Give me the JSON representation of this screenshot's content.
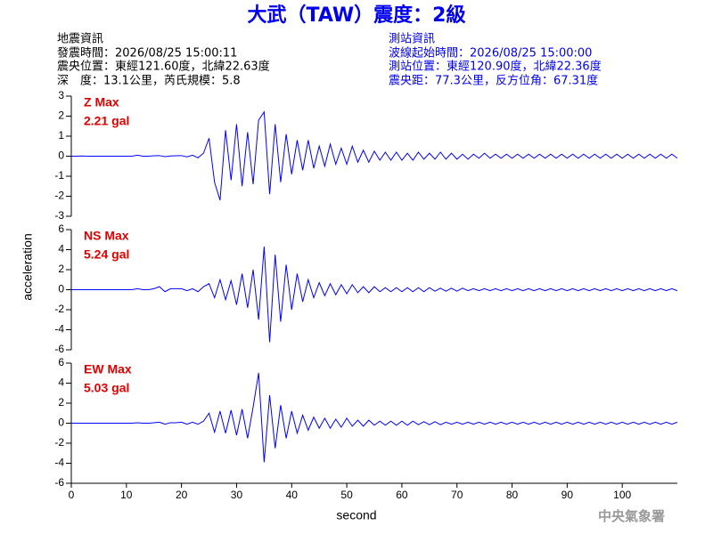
{
  "header": {
    "title": "大武（TAW）震度：2級",
    "left": [
      "地震資訊",
      "發震時間：2026/08/25 15:00:11",
      "震央位置：東經121.60度，北緯22.63度",
      "深　度：13.1公里，芮氏規模：5.8"
    ],
    "right": [
      "測站資訊",
      "波線起始時間：2026/08/25 15:00:00",
      "測站位置：東經120.90度，北緯22.36度",
      "震央距：77.3公里，反方位角：67.31度"
    ]
  },
  "footer": "中央氣象署",
  "chart_data": [
    {
      "type": "line",
      "max_name": "Z Max",
      "max_label": "2.21 gal",
      "color": "#0000ff",
      "annotation_color": "#e00000",
      "xlim": [
        0,
        110
      ],
      "ylim": [
        -3,
        3
      ],
      "yticks": [
        3,
        2,
        1,
        0,
        -1,
        -2,
        -3
      ],
      "x": [
        0,
        1,
        2,
        3,
        4,
        5,
        6,
        7,
        8,
        9,
        10,
        11,
        12,
        13,
        14,
        15,
        16,
        17,
        18,
        19,
        20,
        21,
        22,
        23,
        24,
        25,
        26,
        27,
        28,
        29,
        30,
        31,
        32,
        33,
        34,
        35,
        36,
        37,
        38,
        39,
        40,
        41,
        42,
        43,
        44,
        45,
        46,
        47,
        48,
        49,
        50,
        51,
        52,
        53,
        54,
        55,
        56,
        57,
        58,
        59,
        60,
        61,
        62,
        63,
        64,
        65,
        66,
        67,
        68,
        69,
        70,
        71,
        72,
        73,
        74,
        75,
        76,
        77,
        78,
        79,
        80,
        81,
        82,
        83,
        84,
        85,
        86,
        87,
        88,
        89,
        90,
        91,
        92,
        93,
        94,
        95,
        96,
        97,
        98,
        99,
        100,
        101,
        102,
        103,
        104,
        105,
        106,
        107,
        108,
        109,
        110
      ],
      "values": [
        0,
        0,
        0.01,
        0,
        0,
        0,
        0,
        0,
        0,
        0,
        0,
        0,
        0.05,
        0,
        0,
        0.02,
        0.03,
        -0.02,
        0.01,
        0.02,
        0.03,
        -0.03,
        0.05,
        -0.08,
        0.15,
        0.9,
        -1.3,
        -2.2,
        1.3,
        -1.2,
        1.6,
        -1.5,
        1.2,
        -1.4,
        1.8,
        2.21,
        -1.9,
        1.6,
        -1.3,
        1.1,
        -0.9,
        0.8,
        -0.7,
        0.8,
        -0.6,
        0.5,
        -0.5,
        0.6,
        -0.4,
        0.4,
        -0.4,
        0.5,
        -0.3,
        0.3,
        -0.3,
        0.25,
        -0.2,
        0.2,
        -0.2,
        0.2,
        -0.2,
        0.15,
        -0.2,
        0.2,
        -0.15,
        0.15,
        -0.15,
        0.2,
        -0.15,
        0.15,
        -0.15,
        0.1,
        -0.15,
        0.1,
        -0.1,
        0.15,
        -0.1,
        0.1,
        -0.1,
        0.1,
        -0.1,
        0.1,
        -0.1,
        0.1,
        -0.1,
        0.1,
        -0.1,
        0.1,
        -0.1,
        0.1,
        -0.1,
        0.1,
        -0.1,
        0.1,
        -0.1,
        0.1,
        -0.1,
        0.1,
        -0.1,
        0.1,
        -0.1,
        0.1,
        -0.1,
        0.1,
        -0.1,
        0.1,
        -0.1,
        0.1,
        -0.1,
        0.1,
        -0.1
      ]
    },
    {
      "type": "line",
      "max_name": "NS Max",
      "max_label": "5.24 gal",
      "color": "#0000ff",
      "annotation_color": "#e00000",
      "ylabel": "acceleration",
      "xlim": [
        0,
        110
      ],
      "ylim": [
        -6,
        6
      ],
      "yticks": [
        6,
        4,
        2,
        0,
        -2,
        -4,
        -6
      ],
      "x": [
        0,
        1,
        2,
        3,
        4,
        5,
        6,
        7,
        8,
        9,
        10,
        11,
        12,
        13,
        14,
        15,
        16,
        17,
        18,
        19,
        20,
        21,
        22,
        23,
        24,
        25,
        26,
        27,
        28,
        29,
        30,
        31,
        32,
        33,
        34,
        35,
        36,
        37,
        38,
        39,
        40,
        41,
        42,
        43,
        44,
        45,
        46,
        47,
        48,
        49,
        50,
        51,
        52,
        53,
        54,
        55,
        56,
        57,
        58,
        59,
        60,
        61,
        62,
        63,
        64,
        65,
        66,
        67,
        68,
        69,
        70,
        71,
        72,
        73,
        74,
        75,
        76,
        77,
        78,
        79,
        80,
        81,
        82,
        83,
        84,
        85,
        86,
        87,
        88,
        89,
        90,
        91,
        92,
        93,
        94,
        95,
        96,
        97,
        98,
        99,
        100,
        101,
        102,
        103,
        104,
        105,
        106,
        107,
        108,
        109,
        110
      ],
      "values": [
        0,
        0,
        0,
        0,
        0,
        0,
        0,
        0,
        0,
        0,
        0,
        0,
        0.1,
        0,
        0,
        0.1,
        0.3,
        -0.2,
        0.1,
        0.1,
        0.1,
        -0.1,
        0.1,
        -0.2,
        0.3,
        0.6,
        -0.8,
        1.0,
        -1.0,
        0.9,
        -1.5,
        1.6,
        -1.8,
        2.0,
        -3.0,
        4.3,
        -5.24,
        3.5,
        -3.2,
        2.5,
        -2.0,
        1.6,
        -1.2,
        1.0,
        -0.8,
        0.7,
        -0.6,
        0.6,
        -0.5,
        0.5,
        -0.4,
        0.5,
        -0.3,
        0.3,
        -0.3,
        0.3,
        -0.2,
        0.2,
        -0.2,
        0.2,
        -0.2,
        0.2,
        -0.2,
        0.2,
        -0.2,
        0.2,
        -0.15,
        0.15,
        -0.15,
        0.15,
        -0.15,
        0.15,
        -0.1,
        0.1,
        -0.1,
        0.1,
        -0.1,
        0.1,
        -0.1,
        0.1,
        -0.1,
        0.1,
        -0.1,
        0.1,
        -0.1,
        0.1,
        -0.1,
        0.1,
        -0.1,
        0.1,
        -0.1,
        0.1,
        -0.1,
        0.1,
        -0.1,
        0.1,
        -0.1,
        0.1,
        -0.1,
        0.1,
        -0.1,
        0.1,
        -0.1,
        0.1,
        -0.1,
        0.1,
        -0.1,
        0.1,
        -0.1,
        0.1,
        -0.1
      ]
    },
    {
      "type": "line",
      "max_name": "EW Max",
      "max_label": "5.03 gal",
      "color": "#0000ff",
      "annotation_color": "#e00000",
      "xlabel": "second",
      "xlim": [
        0,
        110
      ],
      "xticks": [
        0,
        10,
        20,
        30,
        40,
        50,
        60,
        70,
        80,
        90,
        100
      ],
      "ylim": [
        -6,
        6
      ],
      "yticks": [
        6,
        4,
        2,
        0,
        -2,
        -4,
        -6
      ],
      "x": [
        0,
        1,
        2,
        3,
        4,
        5,
        6,
        7,
        8,
        9,
        10,
        11,
        12,
        13,
        14,
        15,
        16,
        17,
        18,
        19,
        20,
        21,
        22,
        23,
        24,
        25,
        26,
        27,
        28,
        29,
        30,
        31,
        32,
        33,
        34,
        35,
        36,
        37,
        38,
        39,
        40,
        41,
        42,
        43,
        44,
        45,
        46,
        47,
        48,
        49,
        50,
        51,
        52,
        53,
        54,
        55,
        56,
        57,
        58,
        59,
        60,
        61,
        62,
        63,
        64,
        65,
        66,
        67,
        68,
        69,
        70,
        71,
        72,
        73,
        74,
        75,
        76,
        77,
        78,
        79,
        80,
        81,
        82,
        83,
        84,
        85,
        86,
        87,
        88,
        89,
        90,
        91,
        92,
        93,
        94,
        95,
        96,
        97,
        98,
        99,
        100,
        101,
        102,
        103,
        104,
        105,
        106,
        107,
        108,
        109,
        110
      ],
      "values": [
        0,
        0,
        0,
        0,
        0,
        0,
        0,
        0,
        0,
        0,
        0,
        0,
        0.05,
        0,
        0,
        0.05,
        0.1,
        -0.1,
        0.05,
        0.05,
        0.1,
        -0.1,
        0.1,
        -0.1,
        0.2,
        1.0,
        -0.9,
        1.2,
        -1.0,
        1.3,
        -1.2,
        1.4,
        -1.5,
        1.6,
        5.03,
        -3.9,
        2.8,
        -2.5,
        1.8,
        -1.5,
        1.2,
        -1.0,
        0.8,
        -0.7,
        0.6,
        -0.5,
        0.5,
        -0.5,
        0.4,
        -0.4,
        0.5,
        -0.3,
        0.3,
        -0.3,
        0.3,
        -0.2,
        0.2,
        -0.2,
        0.2,
        -0.2,
        0.2,
        -0.2,
        0.2,
        -0.15,
        0.15,
        -0.15,
        0.15,
        -0.15,
        0.1,
        -0.1,
        0.1,
        -0.1,
        0.1,
        -0.1,
        0.1,
        -0.1,
        0.1,
        -0.1,
        0.1,
        -0.1,
        0.1,
        -0.1,
        0.1,
        -0.1,
        0.1,
        -0.1,
        0.1,
        -0.1,
        0.1,
        -0.1,
        0.1,
        -0.1,
        0.1,
        -0.1,
        0.1,
        -0.1,
        0.1,
        -0.1,
        0.1,
        -0.1,
        0.1,
        -0.1,
        0.1,
        -0.1,
        0.1,
        -0.1,
        0.1,
        -0.1,
        0.1,
        -0.1,
        0.1
      ]
    }
  ]
}
